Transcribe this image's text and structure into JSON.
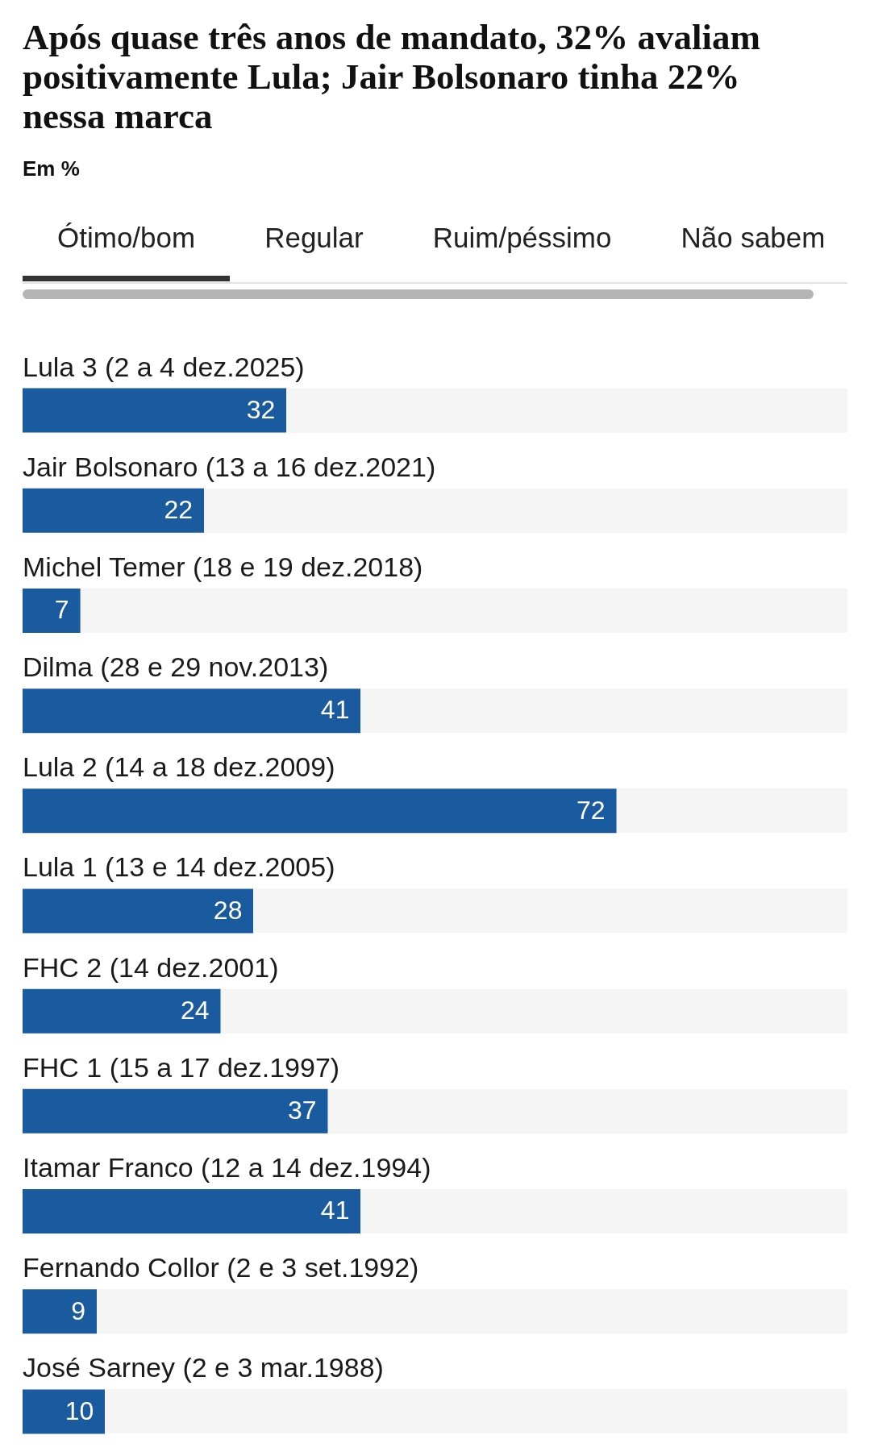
{
  "chart_data": {
    "type": "bar",
    "orientation": "horizontal",
    "title": "Após quase três anos de mandato, 32% avaliam positivamente Lula; Jair Bolsonaro tinha 22% nessa marca",
    "subtitle": "Em %",
    "annotations": [
      "Ótimo/bom",
      "Regular",
      "Ruim/péssimo",
      "Não sabem"
    ],
    "categories": [
      "Lula 3 (2 a 4 dez.2025)",
      "Jair Bolsonaro (13 a 16 dez.2021)",
      "Michel Temer (18 e 19 dez.2018)",
      "Dilma (28 e 29 nov.2013)",
      "Lula 2 (14 a 18 dez.2009)",
      "Lula 1 (13 e 14 dez.2005)",
      "FHC 2 (14 dez.2001)",
      "FHC 1 (15 a 17 dez.1997)",
      "Itamar Franco (12 a 14 dez.1994)",
      "Fernando Collor (2 e 3 set.1992)",
      "José Sarney (2 e 3 mar.1988)"
    ],
    "values": [
      32,
      22,
      7,
      41,
      72,
      28,
      24,
      37,
      41,
      9,
      10
    ],
    "color": "#1a5a9f",
    "xlim": [
      0,
      100
    ],
    "data_labels": true,
    "tick_labels": "y"
  }
}
